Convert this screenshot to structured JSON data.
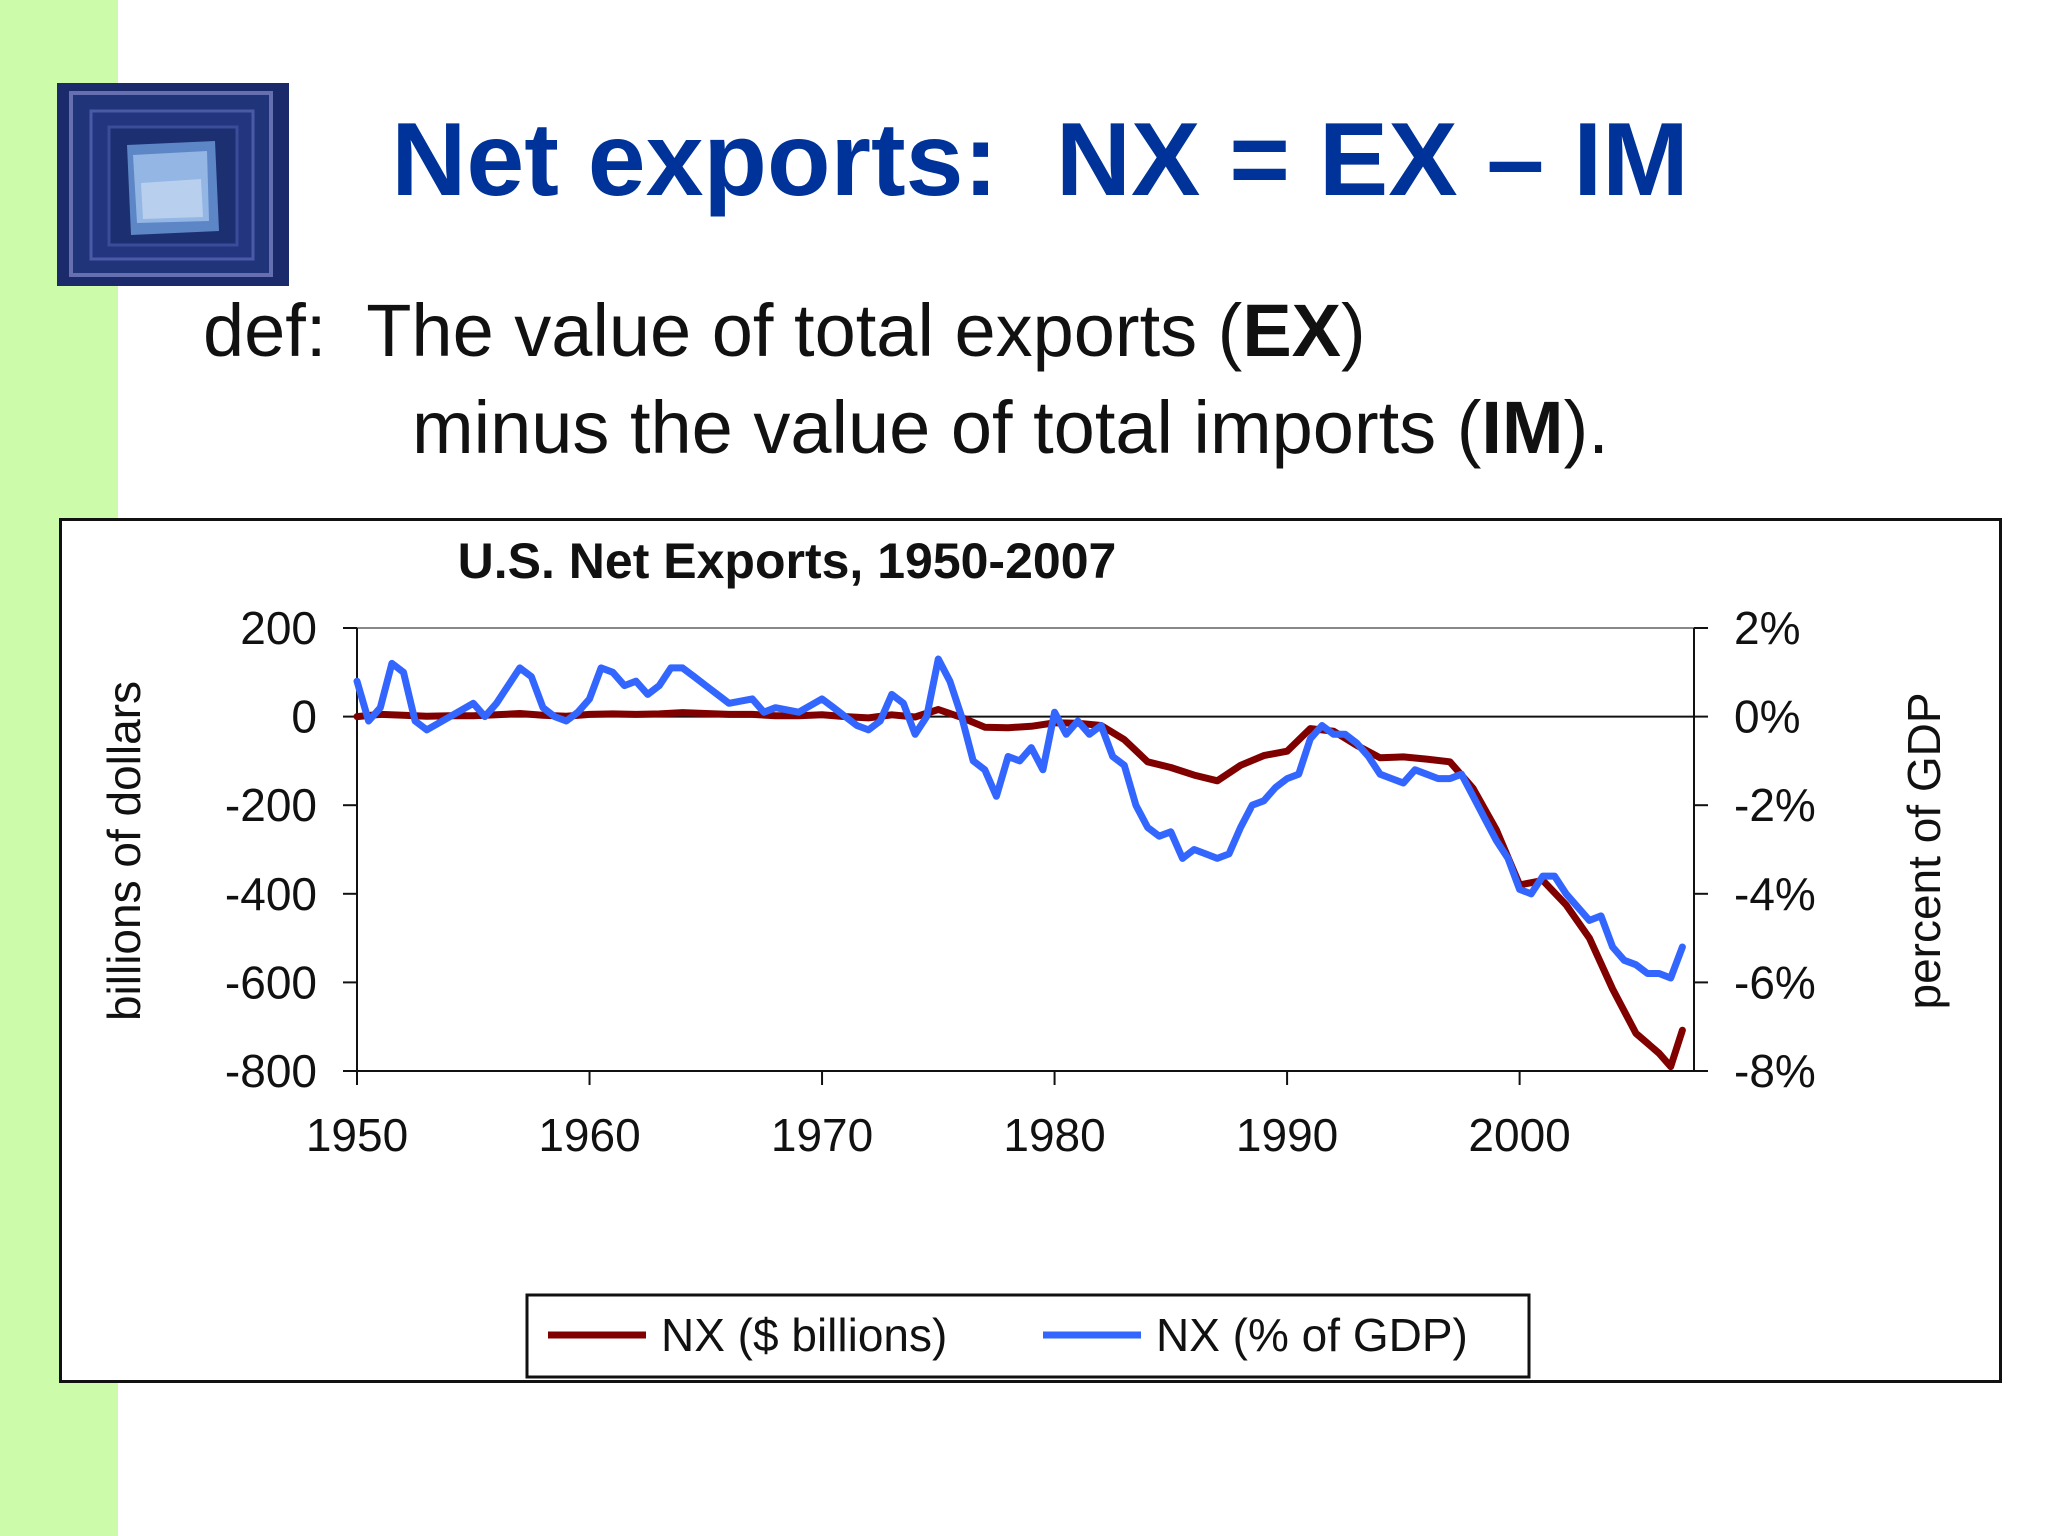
{
  "slide": {
    "title": "Net exports:  NX = EX – IM",
    "definition": {
      "line1_prefix": "def:  The value of total exports (",
      "line1_bold": "EX",
      "line1_suffix": ")",
      "line2_prefix": "minus the value of total imports (",
      "line2_bold": "IM",
      "line2_suffix": ")."
    },
    "logo": {
      "name": "blue-square-tunnel-logo"
    },
    "colors": {
      "sidebar": "#ccfcaa",
      "title": "#003399",
      "series_billions": "#800000",
      "series_gdp": "#3366ff"
    }
  },
  "chart_data": {
    "type": "line",
    "title": "U.S. Net Exports, 1950-2007",
    "xlabel": "",
    "ylabel": "billions of dollars",
    "y2label": "percent of GDP",
    "xlim": [
      1950,
      2007.5
    ],
    "ylim": [
      -800,
      200
    ],
    "y2lim": [
      -8,
      2
    ],
    "x_ticks": [
      "1950",
      "1960",
      "1970",
      "1980",
      "1990",
      "2000"
    ],
    "x_tick_values": [
      1950,
      1960,
      1970,
      1980,
      1990,
      2000
    ],
    "y_ticks": [
      "200",
      "0",
      "-200",
      "-400",
      "-600",
      "-800"
    ],
    "y_tick_values": [
      200,
      0,
      -200,
      -400,
      -600,
      -800
    ],
    "y2_ticks": [
      "2%",
      "0%",
      "-2%",
      "-4%",
      "-6%",
      "-8%"
    ],
    "y2_tick_values": [
      2,
      0,
      -2,
      -4,
      -6,
      -8
    ],
    "legend_position": "bottom",
    "series": [
      {
        "name": "NX ($ billions)",
        "axis": "left",
        "color": "#800000",
        "points": [
          [
            1950,
            0
          ],
          [
            1951,
            5
          ],
          [
            1952,
            3
          ],
          [
            1953,
            1
          ],
          [
            1954,
            2
          ],
          [
            1955,
            2
          ],
          [
            1956,
            4
          ],
          [
            1957,
            7
          ],
          [
            1958,
            3
          ],
          [
            1959,
            1
          ],
          [
            1960,
            5
          ],
          [
            1961,
            6
          ],
          [
            1962,
            5
          ],
          [
            1963,
            6
          ],
          [
            1964,
            9
          ],
          [
            1965,
            7
          ],
          [
            1966,
            5
          ],
          [
            1967,
            5
          ],
          [
            1968,
            2
          ],
          [
            1969,
            2
          ],
          [
            1970,
            4
          ],
          [
            1971,
            0
          ],
          [
            1972,
            -3
          ],
          [
            1973,
            4
          ],
          [
            1974,
            -1
          ],
          [
            1975,
            16
          ],
          [
            1976,
            -2
          ],
          [
            1977,
            -24
          ],
          [
            1978,
            -25
          ],
          [
            1979,
            -22
          ],
          [
            1980,
            -14
          ],
          [
            1981,
            -15
          ],
          [
            1982,
            -20
          ],
          [
            1983,
            -52
          ],
          [
            1984,
            -102
          ],
          [
            1985,
            -115
          ],
          [
            1986,
            -132
          ],
          [
            1987,
            -145
          ],
          [
            1988,
            -110
          ],
          [
            1989,
            -88
          ],
          [
            1990,
            -78
          ],
          [
            1991,
            -27
          ],
          [
            1992,
            -33
          ],
          [
            1993,
            -65
          ],
          [
            1994,
            -93
          ],
          [
            1995,
            -91
          ],
          [
            1996,
            -96
          ],
          [
            1997,
            -102
          ],
          [
            1998,
            -162
          ],
          [
            1999,
            -256
          ],
          [
            2000,
            -380
          ],
          [
            2001,
            -370
          ],
          [
            2002,
            -425
          ],
          [
            2003,
            -500
          ],
          [
            2004,
            -615
          ],
          [
            2005,
            -715
          ],
          [
            2006,
            -760
          ],
          [
            2006.5,
            -790
          ],
          [
            2007,
            -708
          ]
        ]
      },
      {
        "name": "NX (% of GDP)",
        "axis": "right",
        "color": "#3366ff",
        "points": [
          [
            1950,
            0.8
          ],
          [
            1950.5,
            -0.1
          ],
          [
            1951,
            0.2
          ],
          [
            1951.5,
            1.2
          ],
          [
            1952,
            1.0
          ],
          [
            1952.5,
            -0.1
          ],
          [
            1953,
            -0.3
          ],
          [
            1954,
            0.0
          ],
          [
            1955,
            0.3
          ],
          [
            1955.5,
            0.0
          ],
          [
            1956,
            0.3
          ],
          [
            1957,
            1.1
          ],
          [
            1957.5,
            0.9
          ],
          [
            1958,
            0.2
          ],
          [
            1958.5,
            0.0
          ],
          [
            1959,
            -0.1
          ],
          [
            1959.5,
            0.1
          ],
          [
            1960,
            0.4
          ],
          [
            1960.5,
            1.1
          ],
          [
            1961,
            1.0
          ],
          [
            1961.5,
            0.7
          ],
          [
            1962,
            0.8
          ],
          [
            1962.5,
            0.5
          ],
          [
            1963,
            0.7
          ],
          [
            1963.5,
            1.1
          ],
          [
            1964,
            1.1
          ],
          [
            1964.5,
            0.9
          ],
          [
            1965,
            0.7
          ],
          [
            1965.5,
            0.5
          ],
          [
            1966,
            0.3
          ],
          [
            1967,
            0.4
          ],
          [
            1967.5,
            0.1
          ],
          [
            1968,
            0.2
          ],
          [
            1969,
            0.1
          ],
          [
            1970,
            0.4
          ],
          [
            1970.5,
            0.2
          ],
          [
            1971,
            0.0
          ],
          [
            1971.5,
            -0.2
          ],
          [
            1972,
            -0.3
          ],
          [
            1972.5,
            -0.1
          ],
          [
            1973,
            0.5
          ],
          [
            1973.5,
            0.3
          ],
          [
            1974,
            -0.4
          ],
          [
            1974.5,
            0.0
          ],
          [
            1975,
            1.3
          ],
          [
            1975.5,
            0.8
          ],
          [
            1976,
            0.0
          ],
          [
            1976.5,
            -1.0
          ],
          [
            1977,
            -1.2
          ],
          [
            1977.5,
            -1.8
          ],
          [
            1978,
            -0.9
          ],
          [
            1978.5,
            -1.0
          ],
          [
            1979,
            -0.7
          ],
          [
            1979.5,
            -1.2
          ],
          [
            1980,
            0.1
          ],
          [
            1980.5,
            -0.4
          ],
          [
            1981,
            -0.1
          ],
          [
            1981.5,
            -0.4
          ],
          [
            1982,
            -0.2
          ],
          [
            1982.5,
            -0.9
          ],
          [
            1983,
            -1.1
          ],
          [
            1983.5,
            -2.0
          ],
          [
            1984,
            -2.5
          ],
          [
            1984.5,
            -2.7
          ],
          [
            1985,
            -2.6
          ],
          [
            1985.5,
            -3.2
          ],
          [
            1986,
            -3.0
          ],
          [
            1986.5,
            -3.1
          ],
          [
            1987,
            -3.2
          ],
          [
            1987.5,
            -3.1
          ],
          [
            1988,
            -2.5
          ],
          [
            1988.5,
            -2.0
          ],
          [
            1989,
            -1.9
          ],
          [
            1989.5,
            -1.6
          ],
          [
            1990,
            -1.4
          ],
          [
            1990.5,
            -1.3
          ],
          [
            1991,
            -0.5
          ],
          [
            1991.5,
            -0.2
          ],
          [
            1992,
            -0.4
          ],
          [
            1992.5,
            -0.4
          ],
          [
            1993,
            -0.6
          ],
          [
            1993.5,
            -0.9
          ],
          [
            1994,
            -1.3
          ],
          [
            1994.5,
            -1.4
          ],
          [
            1995,
            -1.5
          ],
          [
            1995.5,
            -1.2
          ],
          [
            1996,
            -1.3
          ],
          [
            1996.5,
            -1.4
          ],
          [
            1997,
            -1.4
          ],
          [
            1997.5,
            -1.3
          ],
          [
            1998,
            -1.8
          ],
          [
            1998.5,
            -2.3
          ],
          [
            1999,
            -2.8
          ],
          [
            1999.5,
            -3.2
          ],
          [
            2000,
            -3.9
          ],
          [
            2000.5,
            -4.0
          ],
          [
            2001,
            -3.6
          ],
          [
            2001.5,
            -3.6
          ],
          [
            2002,
            -4.0
          ],
          [
            2002.5,
            -4.3
          ],
          [
            2003,
            -4.6
          ],
          [
            2003.5,
            -4.5
          ],
          [
            2004,
            -5.2
          ],
          [
            2004.5,
            -5.5
          ],
          [
            2005,
            -5.6
          ],
          [
            2005.5,
            -5.8
          ],
          [
            2006,
            -5.8
          ],
          [
            2006.5,
            -5.9
          ],
          [
            2007,
            -5.2
          ]
        ]
      }
    ]
  }
}
